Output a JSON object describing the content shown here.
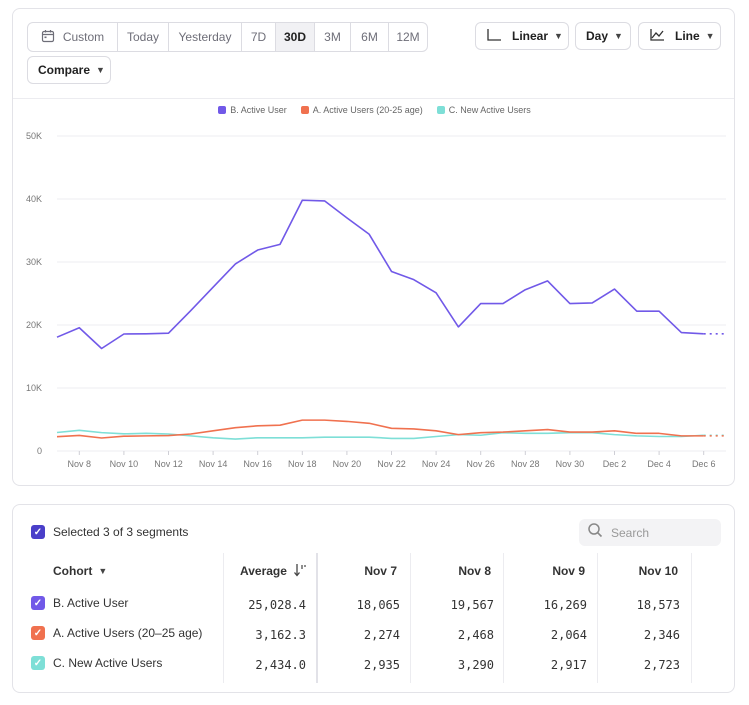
{
  "toolbar": {
    "date_ranges": [
      "Custom",
      "Today",
      "Yesterday",
      "7D",
      "30D",
      "3M",
      "6M",
      "12M"
    ],
    "active_range": "30D",
    "scale_label": "Linear",
    "interval_label": "Day",
    "chart_type_label": "Line",
    "compare_label": "Compare"
  },
  "chart_data": {
    "type": "line",
    "legend_position": "top-center",
    "grid": true,
    "ylim": [
      0,
      50000
    ],
    "y_ticks": [
      "0",
      "10K",
      "20K",
      "30K",
      "40K",
      "50K"
    ],
    "x_tick_labels": [
      "Nov 8",
      "Nov 10",
      "Nov 12",
      "Nov 14",
      "Nov 16",
      "Nov 18",
      "Nov 20",
      "Nov 22",
      "Nov 24",
      "Nov 26",
      "Nov 28",
      "Nov 30",
      "Dec 2",
      "Dec 4",
      "Dec 6"
    ],
    "x": [
      "Nov 7",
      "Nov 8",
      "Nov 9",
      "Nov 10",
      "Nov 11",
      "Nov 12",
      "Nov 13",
      "Nov 14",
      "Nov 15",
      "Nov 16",
      "Nov 17",
      "Nov 18",
      "Nov 19",
      "Nov 20",
      "Nov 21",
      "Nov 22",
      "Nov 23",
      "Nov 24",
      "Nov 25",
      "Nov 26",
      "Nov 27",
      "Nov 28",
      "Nov 29",
      "Nov 30",
      "Dec 1",
      "Dec 2",
      "Dec 3",
      "Dec 4",
      "Dec 5",
      "Dec 6",
      "Dec 7"
    ],
    "series": [
      {
        "name": "B. Active User",
        "color": "#7159e8",
        "values": [
          18065,
          19567,
          16269,
          18573,
          18600,
          18700,
          22300,
          26000,
          29700,
          31900,
          32800,
          39800,
          39700,
          37000,
          34400,
          28500,
          27200,
          25100,
          19700,
          23400,
          23400,
          25600,
          27000,
          23400,
          23500,
          25700,
          22200,
          22200,
          18800,
          18600,
          18600
        ]
      },
      {
        "name": "A. Active Users (20-25 age)",
        "color": "#f0714f",
        "values": [
          2274,
          2468,
          2064,
          2346,
          2400,
          2450,
          2700,
          3200,
          3700,
          4000,
          4100,
          4900,
          4900,
          4700,
          4400,
          3600,
          3500,
          3200,
          2600,
          2900,
          3000,
          3200,
          3400,
          3000,
          3000,
          3200,
          2800,
          2800,
          2400,
          2400,
          2400
        ]
      },
      {
        "name": "C. New Active Users",
        "color": "#7edfd7",
        "values": [
          2935,
          3290,
          2917,
          2723,
          2800,
          2700,
          2400,
          2100,
          1900,
          2100,
          2100,
          2100,
          2200,
          2200,
          2200,
          2000,
          2000,
          2300,
          2600,
          2500,
          2900,
          2800,
          2800,
          2900,
          2900,
          2600,
          2400,
          2300,
          2300,
          2500,
          2500
        ]
      }
    ]
  },
  "table": {
    "selected_label": "Selected 3 of 3 segments",
    "search_placeholder": "Search",
    "headers": {
      "cohort": "Cohort",
      "average": "Average",
      "cols": [
        "Nov 7",
        "Nov 8",
        "Nov 9",
        "Nov 10"
      ]
    },
    "rows": [
      {
        "name": "B. Active User",
        "color": "#7159e8",
        "average": "25,028.4",
        "values": [
          "18,065",
          "19,567",
          "16,269",
          "18,573"
        ]
      },
      {
        "name": "A. Active Users (20–25 age)",
        "color": "#f0714f",
        "average": "3,162.3",
        "values": [
          "2,274",
          "2,468",
          "2,064",
          "2,346"
        ]
      },
      {
        "name": "C. New Active Users",
        "color": "#7edfd7",
        "average": "2,434.0",
        "values": [
          "2,935",
          "3,290",
          "2,917",
          "2,723"
        ]
      }
    ]
  }
}
